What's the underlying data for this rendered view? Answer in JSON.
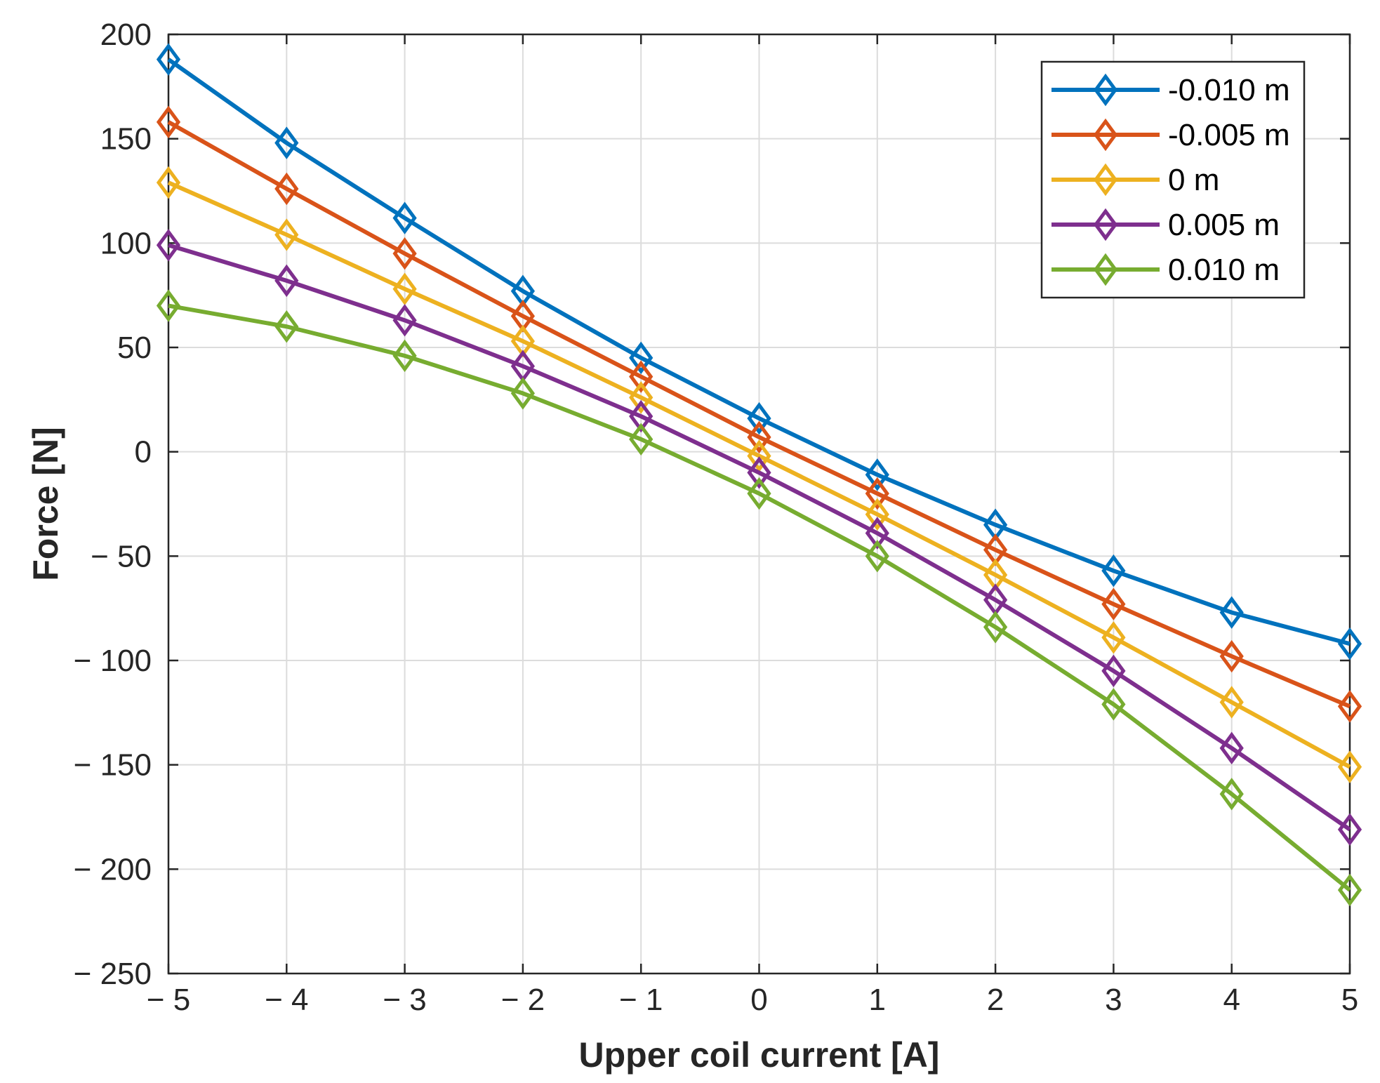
{
  "chart_data": {
    "type": "line",
    "title": "",
    "xlabel": "Upper coil current [A]",
    "ylabel": "Force [N]",
    "xlim": [
      -5,
      5
    ],
    "ylim": [
      -250,
      200
    ],
    "grid": true,
    "legend_position": "top-right",
    "marker": "diamond",
    "x": [
      -5,
      -4,
      -3,
      -2,
      -1,
      0,
      1,
      2,
      3,
      4,
      5
    ],
    "xticks": [
      -5,
      -4,
      -3,
      -2,
      -1,
      0,
      1,
      2,
      3,
      4,
      5
    ],
    "xtick_labels": [
      "− 5",
      "− 4",
      "− 3",
      "− 2",
      "− 1",
      "0",
      "1",
      "2",
      "3",
      "4",
      "5"
    ],
    "yticks": [
      200,
      150,
      100,
      50,
      0,
      -50,
      -100,
      -150,
      -200,
      -250
    ],
    "ytick_labels": [
      "200",
      "150",
      "100",
      "50",
      "0",
      "− 50",
      "− 100",
      "− 150",
      "− 200",
      "− 250"
    ],
    "series": [
      {
        "name": "-0.010 m",
        "color": "#0072bd",
        "values": [
          188,
          148,
          112,
          77,
          45,
          16,
          -11,
          -35,
          -57,
          -77,
          -92
        ]
      },
      {
        "name": "-0.005 m",
        "color": "#d95319",
        "values": [
          158,
          126,
          95,
          65,
          36,
          7,
          -20,
          -47,
          -73,
          -98,
          -122
        ]
      },
      {
        "name": "0 m",
        "color": "#edb120",
        "values": [
          129,
          104,
          78,
          53,
          26,
          -2,
          -30,
          -59,
          -89,
          -120,
          -151
        ]
      },
      {
        "name": "0.005 m",
        "color": "#7e2f8e",
        "values": [
          99,
          82,
          63,
          41,
          17,
          -10,
          -39,
          -71,
          -105,
          -142,
          -181
        ]
      },
      {
        "name": "0.010 m",
        "color": "#77ac30",
        "values": [
          70,
          60,
          46,
          28,
          6,
          -20,
          -50,
          -84,
          -121,
          -164,
          -210
        ]
      }
    ]
  }
}
